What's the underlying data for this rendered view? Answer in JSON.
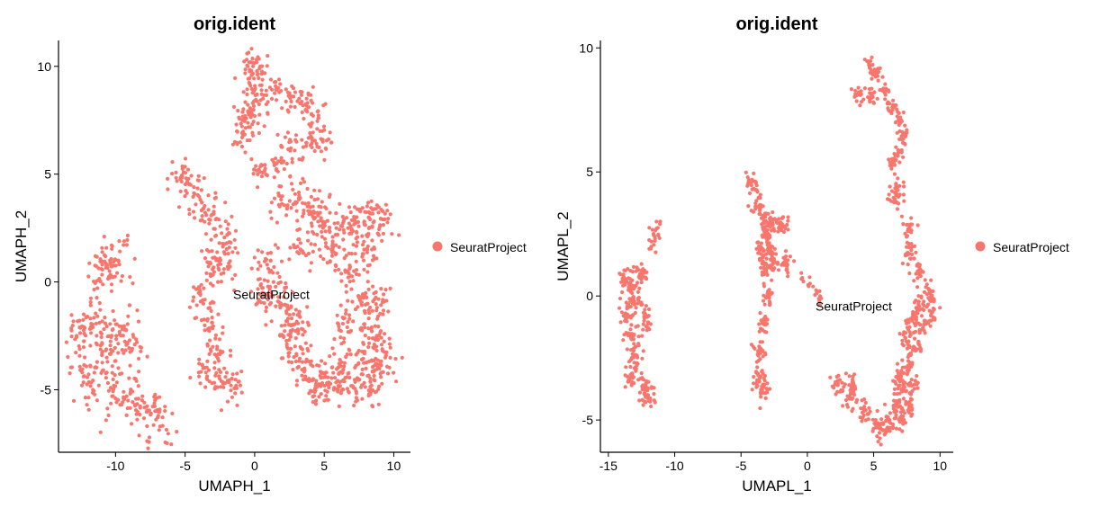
{
  "accent_color": "#F8766D",
  "chart_data": [
    {
      "type": "scatter",
      "title": "orig.ident",
      "xlabel": "UMAPH_1",
      "ylabel": "UMAPH_2",
      "xlim": [
        -14.1,
        11.2
      ],
      "ylim": [
        -7.9,
        11.2
      ],
      "xticks": [
        -10,
        -5,
        0,
        5,
        10
      ],
      "yticks": [
        -5,
        0,
        5,
        10
      ],
      "grid": false,
      "legend_position": "right",
      "series": [
        {
          "name": "SeuratProject",
          "color": "#F8766D",
          "label": "SeuratProject",
          "label_pos": [
            1.2,
            -0.8
          ],
          "clusters": [
            {
              "points": [
                [
                  -12.8,
                  -2.5
                ],
                [
                  -11.8,
                  -1.7
                ],
                [
                  -11.0,
                  -2.4
                ],
                [
                  -10.2,
                  -3.2
                ],
                [
                  -9.3,
                  -2.2
                ],
                [
                  -8.8,
                  -3.1
                ],
                [
                  -12.4,
                  -4.2
                ],
                [
                  -11.2,
                  -4.8
                ],
                [
                  -10.0,
                  -5.4
                ],
                [
                  -8.6,
                  -5.7
                ],
                [
                  -7.6,
                  -6.0
                ],
                [
                  -6.8,
                  -6.7
                ],
                [
                  -11.0,
                  0.6
                ],
                [
                  -10.4,
                  1.0
                ],
                [
                  -9.8,
                  1.0
                ]
              ],
              "sd": [
                0.55,
                0.55
              ],
              "n": 24
            },
            {
              "points": [
                [
                  -5.2,
                  4.9
                ],
                [
                  -4.6,
                  4.5
                ],
                [
                  -3.7,
                  3.4
                ],
                [
                  -2.8,
                  2.9
                ],
                [
                  -2.0,
                  1.8
                ],
                [
                  -2.2,
                  0.6
                ],
                [
                  -3.2,
                  0.9
                ],
                [
                  -3.9,
                  -0.6
                ],
                [
                  -3.4,
                  -1.8
                ],
                [
                  -2.7,
                  -3.0
                ],
                [
                  -3.5,
                  -4.2
                ],
                [
                  -2.4,
                  -4.6
                ],
                [
                  -1.7,
                  -4.8
                ]
              ],
              "sd": [
                0.45,
                0.45
              ],
              "n": 22
            },
            {
              "points": [
                [
                  -0.3,
                  10.2
                ],
                [
                  0.4,
                  10.0
                ],
                [
                  -0.3,
                  9.1
                ],
                [
                  0.6,
                  8.5
                ],
                [
                  1.7,
                  9.0
                ],
                [
                  2.8,
                  8.6
                ],
                [
                  3.8,
                  8.3
                ],
                [
                  4.6,
                  7.6
                ],
                [
                  4.9,
                  6.6
                ],
                [
                  3.7,
                  6.3
                ],
                [
                  2.6,
                  6.2
                ],
                [
                  1.7,
                  5.6
                ],
                [
                  0.0,
                  7.7
                ],
                [
                  -0.9,
                  6.7
                ],
                [
                  -0.7,
                  7.7
                ],
                [
                  0.4,
                  5.1
                ],
                [
                  1.8,
                  3.5
                ]
              ],
              "sd": [
                0.38,
                0.38
              ],
              "n": 18
            },
            {
              "points": [
                [
                  3.2,
                  4.0
                ],
                [
                  4.2,
                  3.2
                ],
                [
                  4.9,
                  2.8
                ],
                [
                  5.6,
                  1.5
                ],
                [
                  6.4,
                  2.4
                ],
                [
                  7.2,
                  2.8
                ],
                [
                  8.3,
                  2.9
                ],
                [
                  9.2,
                  2.9
                ],
                [
                  8.1,
                  1.5
                ],
                [
                  6.7,
                  0.5
                ],
                [
                  7.7,
                  -0.7
                ],
                [
                  8.9,
                  -0.8
                ],
                [
                  6.4,
                  -1.7
                ],
                [
                  8.4,
                  -2.2
                ],
                [
                  9.2,
                  -3.2
                ],
                [
                  7.7,
                  -3.6
                ],
                [
                  6.2,
                  -3.9
                ],
                [
                  5.1,
                  -4.4
                ],
                [
                  4.4,
                  -4.8
                ],
                [
                  5.7,
                  -5.0
                ],
                [
                  7.1,
                  -4.9
                ],
                [
                  8.4,
                  -4.8
                ],
                [
                  9.1,
                  -4.2
                ],
                [
                  3.6,
                  -4.1
                ],
                [
                  2.6,
                  -3.1
                ],
                [
                  2.4,
                  -1.7
                ],
                [
                  3.1,
                  -2.2
                ],
                [
                  1.7,
                  -0.7
                ],
                [
                  0.6,
                  -0.5
                ],
                [
                  0.9,
                  0.8
                ],
                [
                  3.3,
                  1.8
                ]
              ],
              "sd": [
                0.48,
                0.48
              ],
              "n": 26
            }
          ]
        }
      ]
    },
    {
      "type": "scatter",
      "title": "orig.ident",
      "xlabel": "UMAPL_1",
      "ylabel": "UMAPL_2",
      "xlim": [
        -15.6,
        11.0
      ],
      "ylim": [
        -6.3,
        10.3
      ],
      "xticks": [
        -15,
        -10,
        -5,
        0,
        5,
        10
      ],
      "yticks": [
        -5,
        0,
        5,
        10
      ],
      "grid": false,
      "legend_position": "right",
      "series": [
        {
          "name": "SeuratProject",
          "color": "#F8766D",
          "label": "SeuratProject",
          "label_pos": [
            3.5,
            -0.6
          ],
          "clusters": [
            {
              "points": [
                [
                  -13.9,
                  0.6
                ],
                [
                  -13.1,
                  0.4
                ],
                [
                  -12.8,
                  -0.3
                ],
                [
                  -13.6,
                  -0.5
                ],
                [
                  -13.3,
                  -1.6
                ],
                [
                  -12.9,
                  -2.4
                ],
                [
                  -13.2,
                  -3.2
                ],
                [
                  -12.4,
                  -3.6
                ],
                [
                  -12.0,
                  -4.0
                ],
                [
                  -12.3,
                  -1.0
                ],
                [
                  -12.6,
                  0.9
                ],
                [
                  -11.5,
                  2.4
                ]
              ],
              "sd": [
                0.28,
                0.28
              ],
              "n": 22
            },
            {
              "points": [
                [
                  -4.2,
                  4.6
                ],
                [
                  -3.7,
                  3.6
                ],
                [
                  -3.2,
                  3.0
                ],
                [
                  -2.6,
                  2.9
                ],
                [
                  -1.9,
                  2.9
                ],
                [
                  -3.1,
                  2.4
                ],
                [
                  -3.5,
                  1.9
                ],
                [
                  -2.7,
                  1.7
                ],
                [
                  -3.2,
                  1.1
                ],
                [
                  -3.0,
                  0.0
                ],
                [
                  -3.3,
                  -1.0
                ],
                [
                  -3.6,
                  -2.2
                ],
                [
                  -3.7,
                  -3.2
                ],
                [
                  -3.4,
                  -3.8
                ],
                [
                  -2.6,
                  1.4
                ],
                [
                  -1.6,
                  1.3
                ]
              ],
              "sd": [
                0.22,
                0.22
              ],
              "n": 22
            },
            {
              "points": [
                [
                  -0.4,
                  0.7
                ],
                [
                  0.2,
                  0.5
                ],
                [
                  0.7,
                  0.2
                ],
                [
                  0.9,
                  -0.2
                ]
              ],
              "sd": [
                0.12,
                0.12
              ],
              "n": 4
            },
            {
              "points": [
                [
                  4.0,
                  8.1
                ],
                [
                  4.7,
                  9.3
                ],
                [
                  5.2,
                  9.0
                ],
                [
                  5.9,
                  8.3
                ],
                [
                  6.4,
                  7.6
                ],
                [
                  7.0,
                  7.2
                ],
                [
                  7.2,
                  6.5
                ],
                [
                  6.9,
                  5.8
                ],
                [
                  6.4,
                  5.3
                ],
                [
                  6.8,
                  4.4
                ],
                [
                  6.6,
                  3.9
                ],
                [
                  4.8,
                  8.0
                ]
              ],
              "sd": [
                0.2,
                0.2
              ],
              "n": 16
            },
            {
              "points": [
                [
                  7.7,
                  1.7
                ],
                [
                  8.4,
                  0.9
                ],
                [
                  9.2,
                  0.2
                ],
                [
                  9.5,
                  -0.5
                ],
                [
                  8.4,
                  -0.4
                ],
                [
                  7.9,
                  -1.0
                ],
                [
                  8.7,
                  -1.3
                ],
                [
                  8.1,
                  -2.1
                ],
                [
                  7.6,
                  -2.8
                ],
                [
                  7.9,
                  -3.6
                ],
                [
                  7.1,
                  -3.8
                ],
                [
                  7.6,
                  -4.6
                ],
                [
                  7.0,
                  -4.9
                ],
                [
                  6.2,
                  -5.0
                ],
                [
                  5.3,
                  -5.3
                ],
                [
                  4.4,
                  -4.6
                ],
                [
                  3.2,
                  -4.1
                ],
                [
                  2.3,
                  -3.6
                ],
                [
                  3.4,
                  -3.6
                ],
                [
                  6.7,
                  -4.4
                ],
                [
                  6.9,
                  -3.2
                ],
                [
                  7.4,
                  -1.7
                ],
                [
                  5.7,
                  -5.4
                ],
                [
                  7.6,
                  2.7
                ]
              ],
              "sd": [
                0.26,
                0.26
              ],
              "n": 20
            }
          ]
        }
      ]
    }
  ]
}
